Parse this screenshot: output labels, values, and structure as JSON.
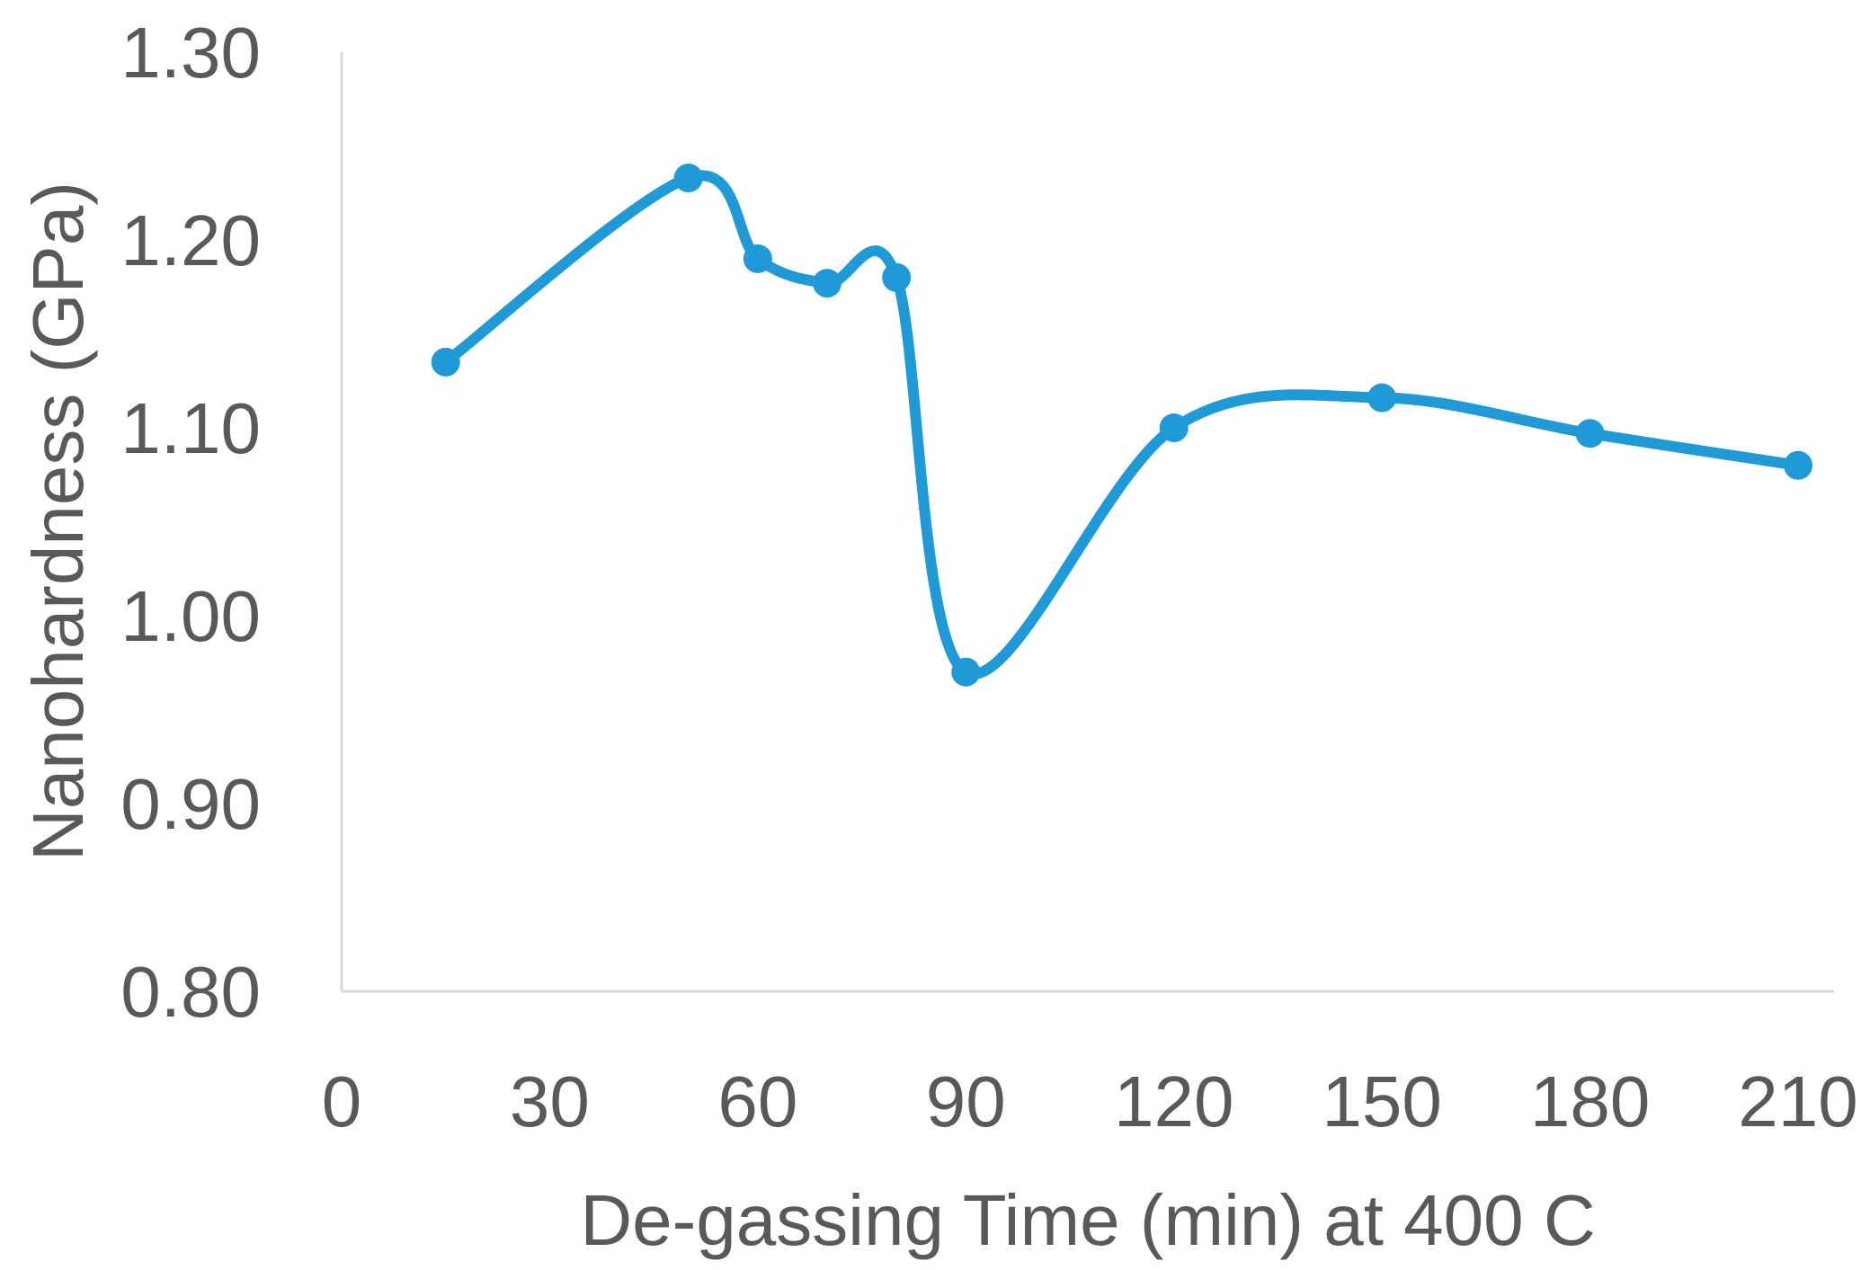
{
  "chart_data": {
    "type": "line",
    "title": "",
    "xlabel": "De-gassing Time (min) at 400 C",
    "ylabel": "Nanohardness (GPa)",
    "xlim": [
      0,
      210
    ],
    "ylim": [
      0.8,
      1.3
    ],
    "x_ticks": [
      "0",
      "30",
      "60",
      "90",
      "120",
      "150",
      "180",
      "210"
    ],
    "y_ticks": [
      "0.80",
      "0.90",
      "1.00",
      "1.10",
      "1.20",
      "1.30"
    ],
    "grid": false,
    "legend": "none",
    "smoothed": true,
    "series": [
      {
        "color": "#1f9ad6",
        "points": [
          {
            "x": 15,
            "y": 1.135
          },
          {
            "x": 50,
            "y": 1.233
          },
          {
            "x": 60,
            "y": 1.19
          },
          {
            "x": 70,
            "y": 1.177
          },
          {
            "x": 80,
            "y": 1.18
          },
          {
            "x": 90,
            "y": 0.97
          },
          {
            "x": 120,
            "y": 1.1
          },
          {
            "x": 150,
            "y": 1.116
          },
          {
            "x": 180,
            "y": 1.097
          },
          {
            "x": 210,
            "y": 1.08
          }
        ]
      }
    ]
  }
}
